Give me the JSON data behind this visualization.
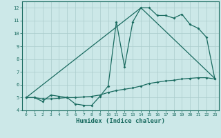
{
  "xlabel": "Humidex (Indice chaleur)",
  "bg_color": "#cce8e8",
  "grid_color": "#aacccc",
  "line_color": "#1a6b60",
  "xlim_min": -0.5,
  "xlim_max": 23.5,
  "ylim_min": 4,
  "ylim_max": 12.5,
  "xticks": [
    0,
    1,
    2,
    3,
    4,
    5,
    6,
    7,
    8,
    9,
    10,
    11,
    12,
    13,
    14,
    15,
    16,
    17,
    18,
    19,
    20,
    21,
    22,
    23
  ],
  "yticks": [
    4,
    5,
    6,
    7,
    8,
    9,
    10,
    11,
    12
  ],
  "line1_x": [
    0,
    1,
    2,
    3,
    4,
    5,
    6,
    7,
    8,
    9,
    10,
    11,
    12,
    13,
    14,
    15,
    16,
    17,
    18,
    19,
    20,
    21,
    22,
    23
  ],
  "line1_y": [
    5.0,
    5.0,
    4.7,
    5.2,
    5.1,
    5.0,
    4.5,
    4.4,
    4.4,
    5.1,
    5.9,
    10.9,
    7.4,
    10.9,
    12.0,
    12.0,
    11.4,
    11.4,
    11.2,
    11.5,
    10.7,
    10.4,
    9.7,
    6.5
  ],
  "line2_x": [
    0,
    14,
    23
  ],
  "line2_y": [
    5.0,
    12.0,
    6.5
  ],
  "line3_x": [
    0,
    1,
    2,
    3,
    4,
    5,
    6,
    7,
    8,
    9,
    10,
    11,
    12,
    13,
    14,
    15,
    16,
    17,
    18,
    19,
    20,
    21,
    22,
    23
  ],
  "line3_y": [
    5.0,
    5.0,
    4.9,
    4.9,
    4.95,
    5.0,
    5.0,
    5.05,
    5.1,
    5.2,
    5.4,
    5.55,
    5.65,
    5.75,
    5.9,
    6.1,
    6.2,
    6.3,
    6.35,
    6.45,
    6.5,
    6.55,
    6.55,
    6.45
  ]
}
